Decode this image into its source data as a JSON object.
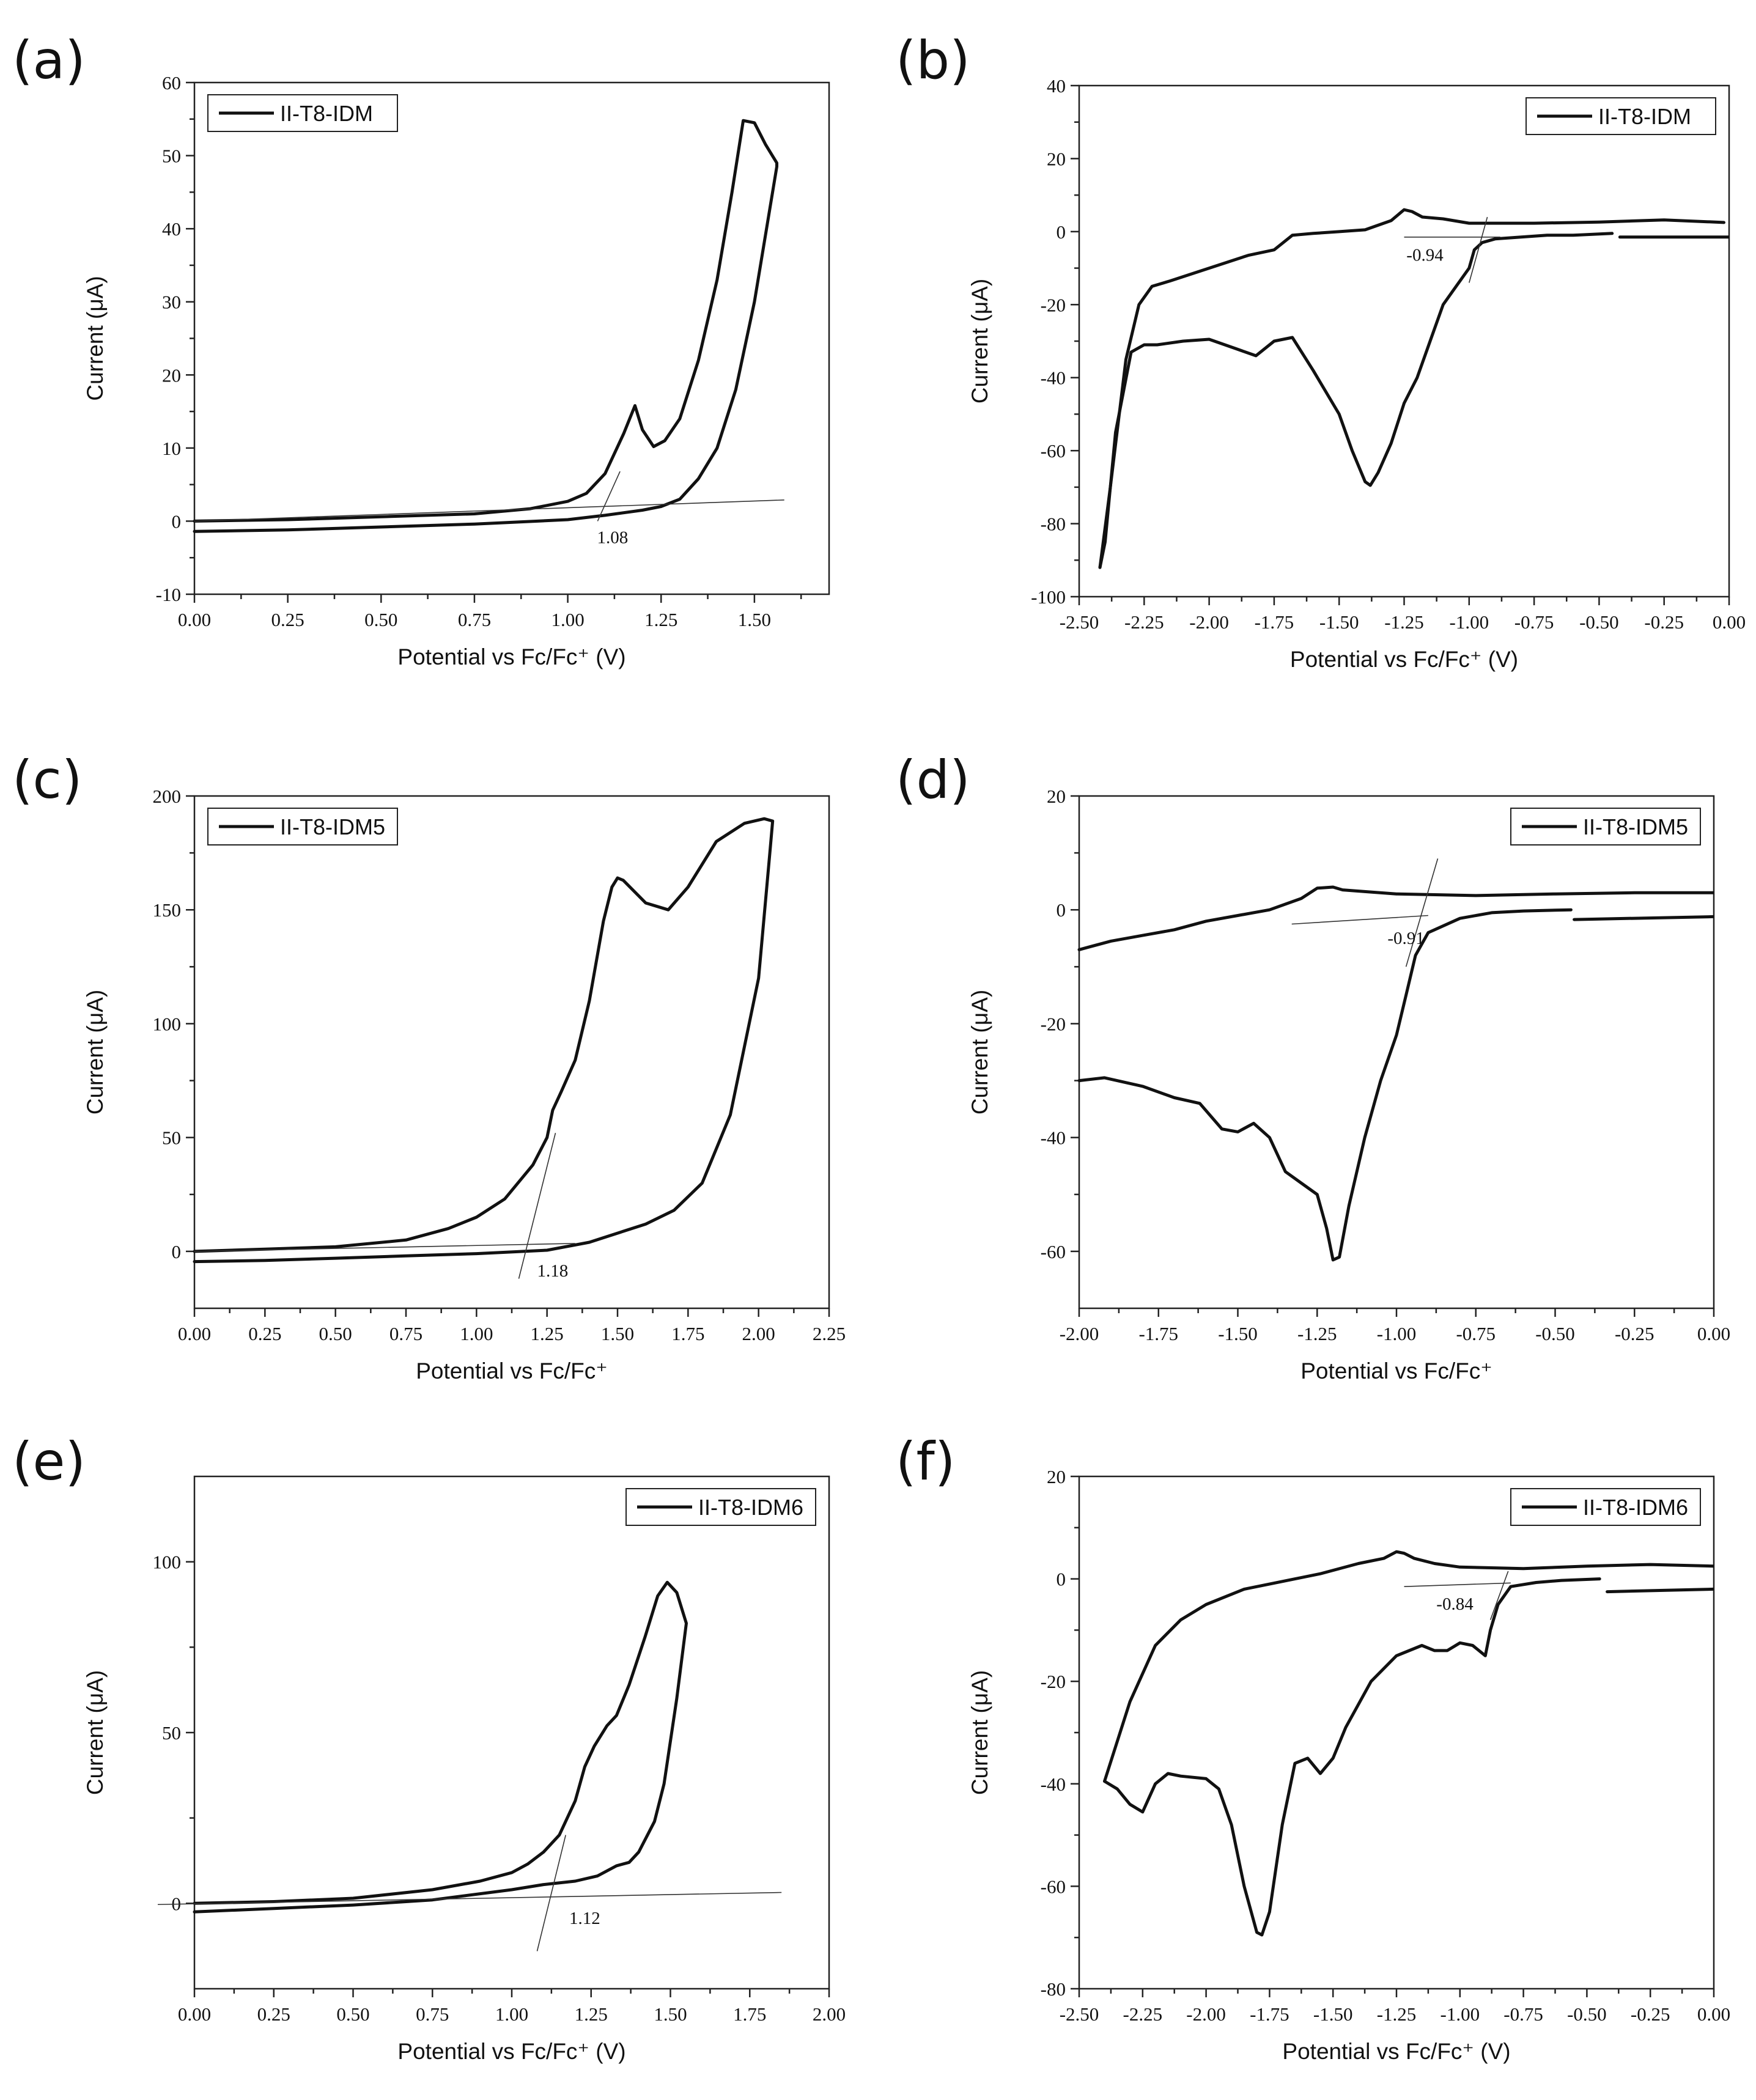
{
  "chart_data": [
    {
      "type": "line",
      "panel_label": "(a)",
      "xlabel": "Potential vs Fc/Fc⁺ (V)",
      "ylabel": "Current (μA)",
      "xlim": [
        0.0,
        1.7
      ],
      "ylim": [
        -10,
        60
      ],
      "x_ticks": [
        0.0,
        0.25,
        0.5,
        0.75,
        1.0,
        1.25,
        1.5
      ],
      "x_tick_labels": [
        "0.00",
        "0.25",
        "0.50",
        "0.75",
        "1.00",
        "1.25",
        "1.50"
      ],
      "y_ticks": [
        -10,
        0,
        10,
        20,
        30,
        40,
        50,
        60
      ],
      "y_tick_labels": [
        "-10",
        "0",
        "10",
        "20",
        "30",
        "40",
        "50",
        "60"
      ],
      "legend": "II-T8-IDM",
      "legend_position": "top-left",
      "annotation": {
        "text": "1.08",
        "x": 1.12,
        "y": -3
      },
      "series": [
        {
          "name": "II-T8-IDM",
          "x": [
            0.0,
            0.25,
            0.5,
            0.75,
            0.9,
            1.0,
            1.05,
            1.1,
            1.15,
            1.18,
            1.2,
            1.23,
            1.26,
            1.3,
            1.35,
            1.4,
            1.44,
            1.47,
            1.5,
            1.53,
            1.56,
            1.56,
            1.5,
            1.45,
            1.4,
            1.35,
            1.3,
            1.25,
            1.2,
            1.1,
            1.0,
            0.75,
            0.5,
            0.25,
            0.0
          ],
          "y": [
            0.0,
            0.2,
            0.6,
            1.0,
            1.7,
            2.7,
            3.8,
            6.5,
            12.0,
            15.8,
            12.5,
            10.2,
            11.0,
            14.0,
            22.0,
            33.0,
            45.0,
            54.8,
            54.5,
            51.5,
            49.0,
            48.5,
            30.0,
            18.0,
            10.0,
            5.8,
            3.0,
            2.0,
            1.5,
            0.8,
            0.2,
            -0.4,
            -0.8,
            -1.2,
            -1.4
          ]
        },
        {
          "name": "tangent-1",
          "x": [
            0.0,
            1.58
          ],
          "y": [
            0.0,
            2.9
          ]
        },
        {
          "name": "tangent-2",
          "x": [
            1.08,
            1.14
          ],
          "y": [
            0.0,
            6.8
          ]
        }
      ]
    },
    {
      "type": "line",
      "panel_label": "(b)",
      "xlabel": "Potential vs Fc/Fc⁺ (V)",
      "ylabel": "Current (μA)",
      "xlim": [
        -2.5,
        0.0
      ],
      "ylim": [
        -100,
        40
      ],
      "x_ticks": [
        -2.5,
        -2.25,
        -2.0,
        -1.75,
        -1.5,
        -1.25,
        -1.0,
        -0.75,
        -0.5,
        -0.25,
        0.0
      ],
      "x_tick_labels": [
        "-2.50",
        "-2.25",
        "-2.00",
        "-1.75",
        "-1.50",
        "-1.25",
        "-1.00",
        "-0.75",
        "-0.50",
        "-0.25",
        "0.00"
      ],
      "y_ticks": [
        -100,
        -80,
        -60,
        -40,
        -20,
        0,
        20,
        40
      ],
      "y_tick_labels": [
        "-100",
        "-80",
        "-60",
        "-40",
        "-20",
        "0",
        "20",
        "40"
      ],
      "legend": "II-T8-IDM",
      "legend_position": "top-right",
      "annotation": {
        "text": "-0.94",
        "x": -1.17,
        "y": -8
      },
      "series": [
        {
          "name": "II-T8-IDM-upper",
          "x": [
            -0.02,
            -0.25,
            -0.5,
            -0.75,
            -1.0,
            -1.1,
            -1.18,
            -1.22,
            -1.25,
            -1.3,
            -1.4,
            -1.5,
            -1.6,
            -1.68,
            -1.75,
            -1.85,
            -2.0,
            -2.15,
            -2.22,
            -2.27,
            -2.32,
            -2.38,
            -2.42
          ],
          "y": [
            2.5,
            3.2,
            2.6,
            2.3,
            2.3,
            3.5,
            4.0,
            5.5,
            6.0,
            3.0,
            0.5,
            0.0,
            -0.5,
            -1.0,
            -5.0,
            -6.5,
            -10.0,
            -13.5,
            -15.0,
            -20.0,
            -35.0,
            -70.0,
            -92.0
          ]
        },
        {
          "name": "II-T8-IDM-lower",
          "x": [
            -2.42,
            -2.4,
            -2.36,
            -2.3,
            -2.25,
            -2.2,
            -2.1,
            -2.0,
            -1.9,
            -1.82,
            -1.75,
            -1.68,
            -1.6,
            -1.5,
            -1.45,
            -1.4,
            -1.38,
            -1.35,
            -1.3,
            -1.25,
            -1.2,
            -1.15,
            -1.1,
            -1.05,
            -1.0,
            -0.98,
            -0.95,
            -0.9,
            -0.8,
            -0.7,
            -0.6,
            -0.45
          ],
          "y": [
            -92.0,
            -85.0,
            -55.0,
            -33.0,
            -31.0,
            -31.0,
            -30.0,
            -29.5,
            -32.0,
            -34.0,
            -30.0,
            -29.0,
            -38.0,
            -50.0,
            -60.0,
            -68.5,
            -69.5,
            -66.0,
            -58.0,
            -47.0,
            -40.0,
            -30.0,
            -20.0,
            -15.0,
            -10.0,
            -5.0,
            -3.0,
            -2.0,
            -1.5,
            -1.0,
            -1.0,
            -0.5
          ]
        },
        {
          "name": "II-T8-IDM-tail",
          "x": [
            -0.42,
            0.0
          ],
          "y": [
            -1.5,
            -1.5
          ]
        },
        {
          "name": "tangent-1",
          "x": [
            -1.25,
            -0.88
          ],
          "y": [
            -1.5,
            -1.5
          ]
        },
        {
          "name": "tangent-2",
          "x": [
            -1.0,
            -0.93
          ],
          "y": [
            -14.0,
            4.0
          ]
        }
      ]
    },
    {
      "type": "line",
      "panel_label": "(c)",
      "xlabel": "Potential vs Fc/Fc⁺",
      "ylabel": "Current (μA)",
      "xlim": [
        0.0,
        2.25
      ],
      "ylim": [
        -25,
        200
      ],
      "x_ticks": [
        0.0,
        0.25,
        0.5,
        0.75,
        1.0,
        1.25,
        1.5,
        1.75,
        2.0,
        2.25
      ],
      "x_tick_labels": [
        "0.00",
        "0.25",
        "0.50",
        "0.75",
        "1.00",
        "1.25",
        "1.50",
        "1.75",
        "2.00",
        "2.25"
      ],
      "y_ticks": [
        0,
        50,
        100,
        150,
        200
      ],
      "y_tick_labels": [
        "0",
        "50",
        "100",
        "150",
        "200"
      ],
      "legend": "II-T8-IDM5",
      "legend_position": "top-left",
      "annotation": {
        "text": "1.18",
        "x": 1.27,
        "y": -11
      },
      "series": [
        {
          "name": "II-T8-IDM5",
          "x": [
            0.0,
            0.25,
            0.5,
            0.75,
            0.9,
            1.0,
            1.1,
            1.2,
            1.25,
            1.27,
            1.3,
            1.35,
            1.4,
            1.45,
            1.48,
            1.5,
            1.52,
            1.6,
            1.68,
            1.75,
            1.85,
            1.95,
            2.02,
            2.05,
            2.04,
            2.0,
            1.9,
            1.8,
            1.7,
            1.6,
            1.5,
            1.4,
            1.25,
            1.0,
            0.75,
            0.5,
            0.25,
            0.0
          ],
          "y": [
            0.0,
            1.0,
            2.0,
            5.0,
            10.0,
            15.0,
            23.0,
            38.0,
            50.0,
            62.0,
            70.0,
            84.0,
            110.0,
            145.0,
            160.0,
            164.0,
            163.0,
            153.0,
            150.0,
            160.0,
            180.0,
            188.0,
            190.0,
            189.0,
            175.0,
            120.0,
            60.0,
            30.0,
            18.0,
            12.0,
            8.0,
            4.0,
            0.5,
            -1.0,
            -2.0,
            -3.0,
            -4.0,
            -4.5
          ]
        },
        {
          "name": "tangent-1",
          "x": [
            0.0,
            1.35
          ],
          "y": [
            0.0,
            3.5
          ]
        },
        {
          "name": "tangent-2",
          "x": [
            1.15,
            1.28
          ],
          "y": [
            -12.0,
            52.0
          ]
        }
      ]
    },
    {
      "type": "line",
      "panel_label": "(d)",
      "xlabel": "Potential vs Fc/Fc⁺",
      "ylabel": "Current (μA)",
      "xlim": [
        -2.0,
        0.0
      ],
      "ylim": [
        -70,
        20
      ],
      "x_ticks": [
        -2.0,
        -1.75,
        -1.5,
        -1.25,
        -1.0,
        -0.75,
        -0.5,
        -0.25,
        0.0
      ],
      "x_tick_labels": [
        "-2.00",
        "-1.75",
        "-1.50",
        "-1.25",
        "-1.00",
        "-0.75",
        "-0.50",
        "-0.25",
        "0.00"
      ],
      "y_ticks": [
        -60,
        -40,
        -20,
        0,
        20
      ],
      "y_tick_labels": [
        "-60",
        "-40",
        "-20",
        "0",
        "20"
      ],
      "legend": "II-T8-IDM5",
      "legend_position": "top-right",
      "annotation": {
        "text": "-0.91",
        "x": -0.97,
        "y": -6
      },
      "series": [
        {
          "name": "II-T8-IDM5-upper",
          "x": [
            0.0,
            -0.25,
            -0.5,
            -0.75,
            -1.0,
            -1.1,
            -1.17,
            -1.2,
            -1.25,
            -1.3,
            -1.4,
            -1.5,
            -1.6,
            -1.7,
            -1.8,
            -1.9,
            -2.0
          ],
          "y": [
            3.0,
            3.0,
            2.8,
            2.5,
            2.8,
            3.2,
            3.5,
            4.0,
            3.8,
            2.0,
            0.0,
            -1.0,
            -2.0,
            -3.5,
            -4.5,
            -5.5,
            -7.0
          ]
        },
        {
          "name": "II-T8-IDM5-lower",
          "x": [
            -2.0,
            -1.92,
            -1.8,
            -1.7,
            -1.62,
            -1.55,
            -1.5,
            -1.45,
            -1.4,
            -1.35,
            -1.3,
            -1.25,
            -1.22,
            -1.2,
            -1.18,
            -1.15,
            -1.1,
            -1.05,
            -1.0,
            -0.97,
            -0.94,
            -0.9,
            -0.8,
            -0.7,
            -0.6,
            -0.45
          ],
          "y": [
            -30.0,
            -29.5,
            -31.0,
            -33.0,
            -34.0,
            -38.5,
            -39.0,
            -37.5,
            -40.0,
            -46.0,
            -48.0,
            -50.0,
            -56.0,
            -61.5,
            -61.0,
            -52.0,
            -40.0,
            -30.0,
            -22.0,
            -15.0,
            -8.0,
            -4.0,
            -1.5,
            -0.5,
            -0.2,
            0.0
          ]
        },
        {
          "name": "II-T8-IDM5-tail",
          "x": [
            -0.44,
            0.0
          ],
          "y": [
            -1.7,
            -1.2
          ]
        },
        {
          "name": "tangent-1",
          "x": [
            -1.33,
            -0.9
          ],
          "y": [
            -2.5,
            -1.0
          ]
        },
        {
          "name": "tangent-2",
          "x": [
            -0.97,
            -0.87
          ],
          "y": [
            -10.0,
            9.0
          ]
        }
      ]
    },
    {
      "type": "line",
      "panel_label": "(e)",
      "xlabel": "Potential vs Fc/Fc⁺ (V)",
      "ylabel": "Current (μA)",
      "xlim": [
        0.0,
        2.0
      ],
      "ylim": [
        -25,
        125
      ],
      "x_ticks": [
        0.0,
        0.25,
        0.5,
        0.75,
        1.0,
        1.25,
        1.5,
        1.75,
        2.0
      ],
      "x_tick_labels": [
        "0.00",
        "0.25",
        "0.50",
        "0.75",
        "1.00",
        "1.25",
        "1.50",
        "1.75",
        "2.00"
      ],
      "y_ticks": [
        0,
        50,
        100
      ],
      "y_tick_labels": [
        "0",
        "50",
        "100"
      ],
      "legend": "II-T8-IDM6",
      "legend_position": "top-right",
      "annotation": {
        "text": "1.12",
        "x": 1.23,
        "y": -6
      },
      "series": [
        {
          "name": "II-T8-IDM6",
          "x": [
            0.0,
            0.25,
            0.5,
            0.75,
            0.9,
            1.0,
            1.05,
            1.1,
            1.15,
            1.2,
            1.23,
            1.26,
            1.3,
            1.33,
            1.37,
            1.42,
            1.46,
            1.49,
            1.52,
            1.55,
            1.52,
            1.48,
            1.45,
            1.4,
            1.37,
            1.33,
            1.27,
            1.2,
            1.1,
            1.0,
            0.75,
            0.5,
            0.25,
            0.0
          ],
          "y": [
            0.0,
            0.5,
            1.5,
            4.0,
            6.5,
            9.0,
            11.5,
            15.0,
            20.0,
            30.0,
            40.0,
            46.0,
            52.0,
            55.0,
            64.0,
            78.0,
            90.0,
            94.0,
            91.0,
            82.0,
            60.0,
            35.0,
            24.0,
            15.0,
            12.0,
            11.0,
            8.0,
            6.5,
            5.5,
            4.0,
            1.0,
            -0.5,
            -1.5,
            -2.5
          ]
        },
        {
          "name": "tangent-1",
          "x": [
            -0.2,
            1.85
          ],
          "y": [
            -0.5,
            3.2
          ]
        },
        {
          "name": "tangent-2",
          "x": [
            1.08,
            1.17
          ],
          "y": [
            -14.0,
            20.0
          ]
        }
      ]
    },
    {
      "type": "line",
      "panel_label": "(f)",
      "xlabel": "Potential vs Fc/Fc⁺ (V)",
      "ylabel": "Current (μA)",
      "xlim": [
        -2.5,
        0.0
      ],
      "ylim": [
        -80,
        20
      ],
      "x_ticks": [
        -2.5,
        -2.25,
        -2.0,
        -1.75,
        -1.5,
        -1.25,
        -1.0,
        -0.75,
        -0.5,
        -0.25,
        0.0
      ],
      "x_tick_labels": [
        "-2.50",
        "-2.25",
        "-2.00",
        "-1.75",
        "-1.50",
        "-1.25",
        "-1.00",
        "-0.75",
        "-0.50",
        "-0.25",
        "0.00"
      ],
      "y_ticks": [
        -80,
        -60,
        -40,
        -20,
        0,
        20
      ],
      "y_tick_labels": [
        "-80",
        "-60",
        "-40",
        "-20",
        "0",
        "20"
      ],
      "legend": "II-T8-IDM6",
      "legend_position": "top-right",
      "annotation": {
        "text": "-0.84",
        "x": -1.02,
        "y": -6
      },
      "series": [
        {
          "name": "II-T8-IDM6-upper",
          "x": [
            0.0,
            -0.25,
            -0.5,
            -0.75,
            -1.0,
            -1.1,
            -1.18,
            -1.22,
            -1.25,
            -1.3,
            -1.4,
            -1.55,
            -1.7,
            -1.85,
            -2.0,
            -2.1,
            -2.2,
            -2.3,
            -2.4
          ],
          "y": [
            2.5,
            2.8,
            2.5,
            2.0,
            2.3,
            3.0,
            4.0,
            5.0,
            5.3,
            4.0,
            3.0,
            1.0,
            -0.5,
            -2.0,
            -5.0,
            -8.0,
            -13.0,
            -24.0,
            -39.5
          ]
        },
        {
          "name": "II-T8-IDM6-lower",
          "x": [
            -2.4,
            -2.35,
            -2.3,
            -2.25,
            -2.2,
            -2.15,
            -2.1,
            -2.0,
            -1.95,
            -1.9,
            -1.85,
            -1.8,
            -1.78,
            -1.75,
            -1.7,
            -1.65,
            -1.6,
            -1.55,
            -1.5,
            -1.45,
            -1.35,
            -1.25,
            -1.15,
            -1.1,
            -1.05,
            -1.0,
            -0.95,
            -0.9,
            -0.88,
            -0.85,
            -0.8,
            -0.7,
            -0.6,
            -0.45
          ],
          "y": [
            -39.5,
            -41.0,
            -44.0,
            -45.5,
            -40.0,
            -38.0,
            -38.5,
            -39.0,
            -41.0,
            -48.0,
            -60.0,
            -69.0,
            -69.5,
            -65.0,
            -48.0,
            -36.0,
            -35.0,
            -38.0,
            -35.0,
            -29.0,
            -20.0,
            -15.0,
            -13.0,
            -14.0,
            -14.0,
            -12.5,
            -13.0,
            -15.0,
            -10.0,
            -5.0,
            -1.5,
            -0.7,
            -0.3,
            0.0
          ]
        },
        {
          "name": "II-T8-IDM6-tail",
          "x": [
            -0.42,
            0.0
          ],
          "y": [
            -2.5,
            -2.0
          ]
        },
        {
          "name": "tangent-1",
          "x": [
            -1.22,
            -0.8
          ],
          "y": [
            -1.5,
            -0.8
          ]
        },
        {
          "name": "tangent-2",
          "x": [
            -0.88,
            -0.81
          ],
          "y": [
            -8.0,
            1.5
          ]
        }
      ]
    }
  ]
}
